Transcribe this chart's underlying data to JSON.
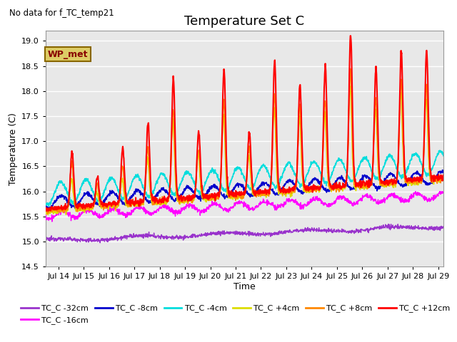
{
  "title": "Temperature Set C",
  "subtitle": "No data for f_TC_temp21",
  "xlabel": "Time",
  "ylabel": "Temperature (C)",
  "ylim": [
    14.5,
    19.2
  ],
  "xlim_days": [
    13.5,
    29.2
  ],
  "x_ticks": [
    14,
    15,
    16,
    17,
    18,
    19,
    20,
    21,
    22,
    23,
    24,
    25,
    26,
    27,
    28,
    29
  ],
  "x_tick_labels": [
    "Jul 14",
    "Jul 15",
    "Jul 16",
    "Jul 17",
    "Jul 18",
    "Jul 19",
    "Jul 20",
    "Jul 21",
    "Jul 22",
    "Jul 23",
    "Jul 24",
    "Jul 25",
    "Jul 26",
    "Jul 27",
    "Jul 28",
    "Jul 29"
  ],
  "legend_labels": [
    "TC_C -32cm",
    "TC_C -16cm",
    "TC_C -8cm",
    "TC_C -4cm",
    "TC_C +4cm",
    "TC_C +8cm",
    "TC_C +12cm"
  ],
  "line_colors": [
    "#9933cc",
    "#ff00ff",
    "#0000cc",
    "#00dddd",
    "#dddd00",
    "#ff8800",
    "#ff0000"
  ],
  "line_widths": [
    1.0,
    1.0,
    1.2,
    1.2,
    1.2,
    1.2,
    1.5
  ],
  "wp_met_box_color": "#ddcc66",
  "wp_met_text_color": "#880000",
  "background_color": "#ffffff",
  "plot_bg_color": "#e8e8e8",
  "grid_color": "#ffffff",
  "title_fontsize": 13,
  "axis_fontsize": 9,
  "tick_fontsize": 8
}
